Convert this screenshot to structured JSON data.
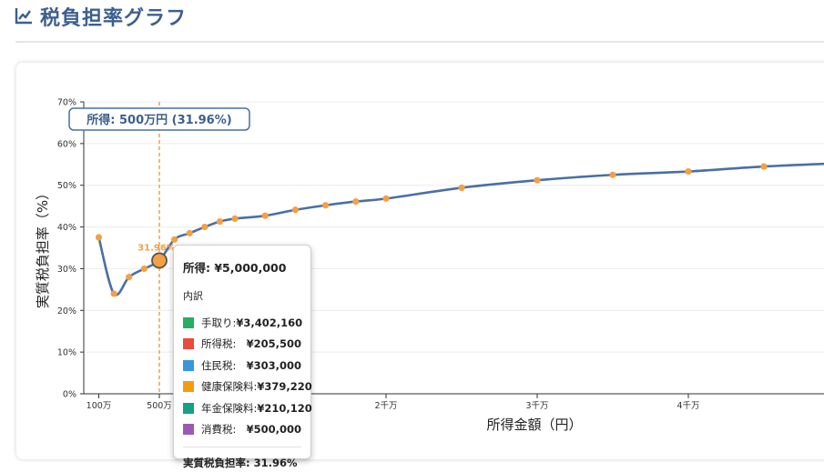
{
  "header": {
    "title": "税負担率グラフ",
    "icon": "line-chart-icon"
  },
  "chart_data": {
    "type": "line",
    "ylabel": "実質税負担率（%）",
    "xlabel": "所得金額（円）",
    "ylim": [
      0,
      70
    ],
    "y_ticks": [
      "0%",
      "10%",
      "20%",
      "30%",
      "40%",
      "50%",
      "60%",
      "70%"
    ],
    "x_ticks": [
      "100万",
      "500万",
      "2千万",
      "3千万",
      "4千万"
    ],
    "grid": "horizontal",
    "line_color": "#4a6fa5",
    "point_color": "#f4a043",
    "series": [
      {
        "x": [
          1000000,
          2000000,
          3000000,
          4000000,
          5000000,
          6000000,
          7000000,
          8000000,
          9000000,
          10000000,
          12000000,
          14000000,
          16000000,
          18000000,
          20000000,
          25000000,
          30000000,
          35000000,
          40000000,
          45000000,
          50000000
        ],
        "values": [
          37.5,
          24.0,
          28.0,
          30.0,
          31.96,
          37.0,
          38.5,
          40.0,
          41.3,
          42.0,
          42.7,
          44.1,
          45.2,
          46.1,
          46.8,
          49.4,
          51.2,
          52.5,
          53.3,
          54.5,
          55.3
        ]
      }
    ],
    "highlight": {
      "x": 5000000,
      "value": 31.96,
      "label": "31.96%"
    },
    "selection_label": "所得: 500万円 (31.96%)"
  },
  "tooltip": {
    "title": "所得: ¥5,000,000",
    "subtitle": "内訳",
    "items": [
      {
        "label": "手取り:",
        "value": "¥3,402,160",
        "color": "#27ae60"
      },
      {
        "label": "所得税:",
        "value": "¥205,500",
        "color": "#e74c3c"
      },
      {
        "label": "住民税:",
        "value": "¥303,000",
        "color": "#3498db"
      },
      {
        "label": "健康保険料:",
        "value": "¥379,220",
        "color": "#f39c12"
      },
      {
        "label": "年金保険料:",
        "value": "¥210,120",
        "color": "#16a085"
      },
      {
        "label": "消費税:",
        "value": "¥500,000",
        "color": "#9b59b6"
      }
    ],
    "total": "実質税負担率: 31.96%"
  }
}
